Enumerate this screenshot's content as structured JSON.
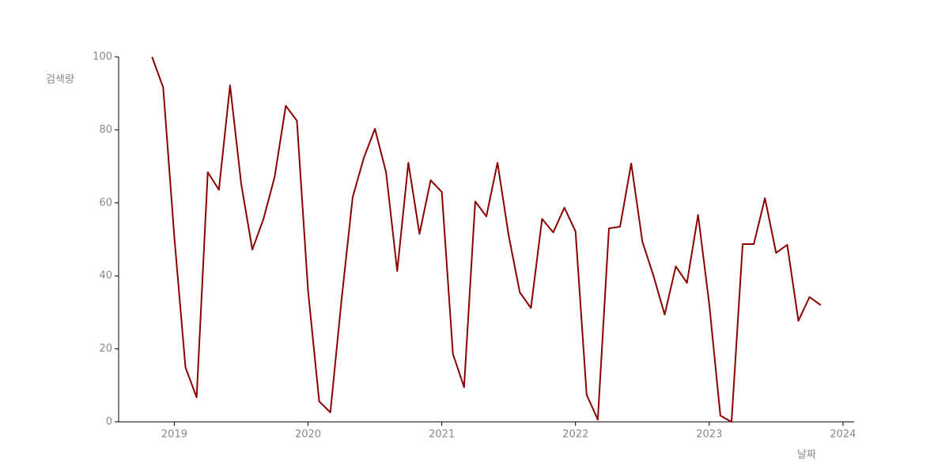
{
  "chart_data": {
    "type": "line",
    "ylabel": "검색량",
    "xlabel": "날짜",
    "x": [
      "2018-11",
      "2018-12",
      "2019-01",
      "2019-02",
      "2019-03",
      "2019-04",
      "2019-05",
      "2019-06",
      "2019-07",
      "2019-08",
      "2019-09",
      "2019-10",
      "2019-11",
      "2019-12",
      "2020-01",
      "2020-02",
      "2020-03",
      "2020-04",
      "2020-05",
      "2020-06",
      "2020-07",
      "2020-08",
      "2020-09",
      "2020-10",
      "2020-11",
      "2020-12",
      "2021-01",
      "2021-02",
      "2021-03",
      "2021-04",
      "2021-05",
      "2021-06",
      "2021-07",
      "2021-08",
      "2021-09",
      "2021-10",
      "2021-11",
      "2021-12",
      "2022-01",
      "2022-02",
      "2022-03",
      "2022-04",
      "2022-05",
      "2022-06",
      "2022-07",
      "2022-08",
      "2022-09",
      "2022-10",
      "2022-11",
      "2022-12",
      "2023-01",
      "2023-02",
      "2023-03",
      "2023-04",
      "2023-05",
      "2023-06",
      "2023-07",
      "2023-08",
      "2023-09",
      "2023-10",
      "2023-11"
    ],
    "series": [
      {
        "color": "#8b0000",
        "values": [
          100,
          91.6,
          50.6,
          14.9,
          6.7,
          68.4,
          63.6,
          92.2,
          65.2,
          47.2,
          55.6,
          67.1,
          86.6,
          82.5,
          35.9,
          5.6,
          2.6,
          33.3,
          61.5,
          72.3,
          80.3,
          68.4,
          41.3,
          71.0,
          51.5,
          66.2,
          63.0,
          18.6,
          9.5,
          60.4,
          56.3,
          71.0,
          51.1,
          35.5,
          31.2,
          55.6,
          51.9,
          58.7,
          52.2,
          7.4,
          0.6,
          53.0,
          53.5,
          70.8,
          49.4,
          40.0,
          29.4,
          42.6,
          38.1,
          56.7,
          32.3,
          1.7,
          0,
          48.7,
          48.7,
          61.3,
          46.3,
          48.5,
          27.7,
          34.2,
          32.0
        ]
      }
    ],
    "xlim": [
      "2018-08",
      "2024-02"
    ],
    "xticks": [
      "2019",
      "2020",
      "2021",
      "2022",
      "2023",
      "2024"
    ],
    "ylim": [
      0,
      100
    ],
    "yticks": [
      0,
      20,
      40,
      60,
      80,
      100
    ],
    "grid": false
  }
}
